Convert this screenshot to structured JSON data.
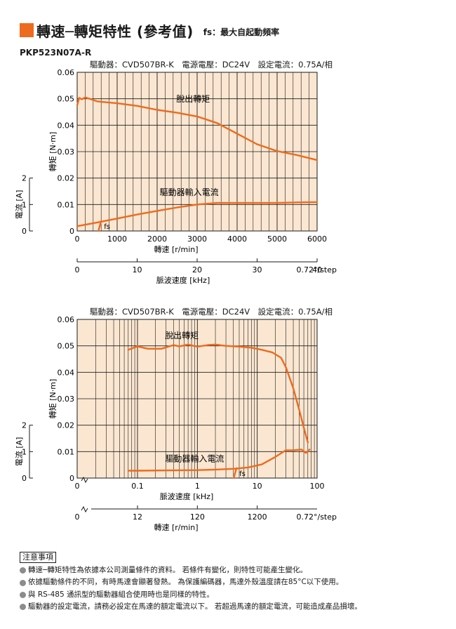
{
  "header": {
    "title": "轉速─轉矩特性 (參考值)",
    "subtitle": "fs：最大自起動頻率",
    "model": "PKP523N07A-R"
  },
  "colors": {
    "accent": "#ee6a1e",
    "plot_bg": "#fbe7d1",
    "grid": "#1a1a1a"
  },
  "chart_data": [
    {
      "type": "line",
      "driver_info": "驅動器：CVD507BR-K　電源電壓：DC24V　設定電流：0.75A/相",
      "x": {
        "label": "轉速 [r/min]",
        "scale": "linear",
        "range": [
          0,
          6000
        ],
        "ticks": [
          "0",
          "1000",
          "2000",
          "3000",
          "4000",
          "5000",
          "6000"
        ]
      },
      "x2": {
        "label": "脈波速度 [kHz]",
        "range": [
          0,
          40
        ],
        "ticks": [
          "0",
          "10",
          "20",
          "30",
          "40"
        ],
        "step_note": "0.72°/step"
      },
      "y": {
        "label": "轉矩 [N·m]",
        "range": [
          0,
          0.06
        ],
        "ticks": [
          "0",
          "0.01",
          "0.02",
          "0.03",
          "0.04",
          "0.05",
          "0.06"
        ]
      },
      "y2": {
        "label": "電流 [A]",
        "range": [
          0,
          2
        ],
        "ticks": [
          "0",
          "1",
          "2"
        ]
      },
      "series": [
        {
          "name": "脫出轉矩",
          "axis": "torque",
          "x": [
            0,
            50,
            120,
            200,
            350,
            500,
            700,
            1000,
            1500,
            2000,
            2500,
            3000,
            3500,
            4000,
            4500,
            5000,
            5500,
            6000
          ],
          "y": [
            0.0475,
            0.0503,
            0.0498,
            0.0505,
            0.0498,
            0.049,
            0.0487,
            0.0483,
            0.0473,
            0.0458,
            0.0447,
            0.0433,
            0.0408,
            0.0368,
            0.0328,
            0.0302,
            0.0287,
            0.0268
          ]
        },
        {
          "name": "驅動器輸入電流",
          "axis": "current",
          "x": [
            0,
            500,
            1000,
            1500,
            2000,
            2500,
            3000,
            3500,
            4000,
            4500,
            5000,
            5500,
            6000
          ],
          "y": [
            0.18,
            0.32,
            0.47,
            0.62,
            0.76,
            0.89,
            1.0,
            1.06,
            1.06,
            1.06,
            1.06,
            1.08,
            1.09
          ]
        }
      ],
      "fs_label": "fs",
      "fs_x": 600
    },
    {
      "type": "line",
      "driver_info": "驅動器：CVD507BR-K　電源電壓：DC24V　設定電流：0.75A/相",
      "x": {
        "label": "脈波速度 [kHz]",
        "scale": "log",
        "range": [
          0.01,
          100
        ],
        "ticks": [
          "0",
          "0.1",
          "1",
          "10",
          "100"
        ]
      },
      "x2": {
        "label": "轉速 [r/min]",
        "ticks": [
          "0",
          "12",
          "120",
          "1200"
        ],
        "step_note": "0.72°/step"
      },
      "y": {
        "label": "轉矩 [N·m]",
        "range": [
          0,
          0.06
        ],
        "ticks": [
          "0",
          "0.01",
          "0.02",
          "0.03",
          "0.04",
          "0.05",
          "0.06"
        ]
      },
      "y2": {
        "label": "電流 [A]",
        "range": [
          0,
          2
        ],
        "ticks": [
          "0",
          "1",
          "2"
        ]
      },
      "series": [
        {
          "name": "脫出轉矩",
          "axis": "torque",
          "x": [
            0.07,
            0.1,
            0.15,
            0.25,
            0.4,
            0.5,
            0.7,
            1,
            1.5,
            2,
            3,
            5,
            8,
            12,
            18,
            25,
            30,
            40,
            50,
            60,
            70
          ],
          "y": [
            0.0485,
            0.0498,
            0.0489,
            0.0489,
            0.0503,
            0.0498,
            0.0505,
            0.0497,
            0.0503,
            0.0505,
            0.05,
            0.0497,
            0.0493,
            0.0485,
            0.0475,
            0.0455,
            0.042,
            0.034,
            0.026,
            0.019,
            0.0135
          ]
        },
        {
          "name": "驅動器輸入電流",
          "axis": "current",
          "x": [
            0.07,
            0.1,
            0.3,
            1,
            2,
            4,
            7,
            12,
            20,
            30,
            40,
            55,
            65,
            75
          ],
          "y": [
            0.28,
            0.28,
            0.29,
            0.3,
            0.32,
            0.35,
            0.4,
            0.52,
            0.8,
            1.05,
            1.05,
            1.08,
            0.95,
            1.08
          ]
        }
      ],
      "fs_label": "fs",
      "fs_x": 4.5
    }
  ],
  "notes": {
    "title": "注意事項",
    "items": [
      "轉速─轉矩特性為依據本公司測量條件的資料。 若條件有變化，則特性可能產生變化。",
      "依據驅動條件的不同，有時馬達會顯著發熱。 為保護編碼器，馬達外殼溫度請在85°C以下使用。",
      "與 RS-485 通訊型的驅動器組合使用時也是同樣的特性。",
      "驅動器的設定電流，請務必設定在馬達的額定電流以下。 若超過馬達的額定電流，可能造成產品損壞。"
    ]
  }
}
